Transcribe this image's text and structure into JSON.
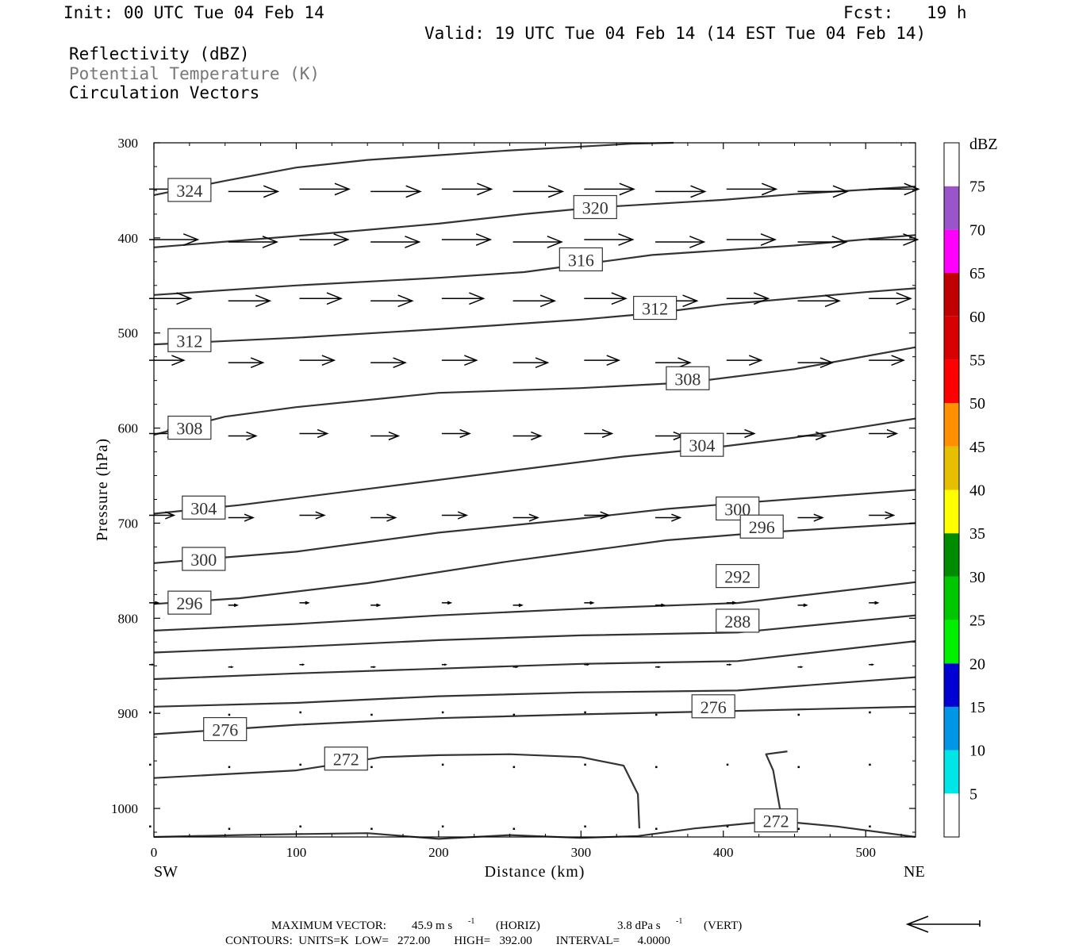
{
  "header": {
    "init": "Init: 00 UTC Tue 04 Feb 14",
    "fcst_label": "Fcst:",
    "fcst_value": "19 h",
    "valid": "Valid: 19 UTC Tue 04 Feb 14 (14 EST Tue 04 Feb 14)"
  },
  "fields": [
    {
      "label": "Reflectivity (dBZ)",
      "color": "#000000"
    },
    {
      "label": "Potential Temperature (K)",
      "color": "#777777"
    },
    {
      "label": "Circulation Vectors",
      "color": "#000000"
    }
  ],
  "footer": {
    "max_vector_label": "MAXIMUM VECTOR:",
    "max_vector_horiz": "45.9 m s",
    "max_vector_horiz_unit": "(HORIZ)",
    "max_vector_vert": "3.8 dPa s",
    "max_vector_vert_unit": "(VERT)",
    "superscript": "-1",
    "contours": "CONTOURS:  UNITS=K  LOW=   272.00        HIGH=   392.00        INTERVAL=      4.0000"
  },
  "chart_data": {
    "type": "contour-cross-section",
    "xlabel": "Distance (km)",
    "ylabel": "Pressure (hPa)",
    "xlim": [
      0,
      535
    ],
    "ylim": [
      300,
      1030
    ],
    "y_inverted": true,
    "x_ticks": [
      0,
      100,
      200,
      300,
      400,
      500
    ],
    "y_ticks": [
      300,
      400,
      500,
      600,
      700,
      800,
      900,
      1000
    ],
    "x_endpoints": {
      "left": "SW",
      "right": "NE"
    },
    "colorbar": {
      "title": "dBZ",
      "ticks": [
        "5",
        "10",
        "15",
        "20",
        "25",
        "30",
        "35",
        "40",
        "45",
        "50",
        "55",
        "60",
        "65",
        "70",
        "75"
      ],
      "colors": [
        "#ffffff",
        "#00e6e6",
        "#0096e6",
        "#0000d2",
        "#00f000",
        "#00c800",
        "#008c00",
        "#ffff00",
        "#e6c000",
        "#ff9000",
        "#ff0000",
        "#d60000",
        "#c00000",
        "#ff00ff",
        "#9955c9",
        "#ffffff"
      ]
    },
    "isentropes": [
      {
        "theta": 324,
        "label": "324",
        "label_at": [
          25,
          350
        ],
        "points": [
          [
            0,
            355
          ],
          [
            50,
            340
          ],
          [
            100,
            326
          ],
          [
            150,
            318
          ],
          [
            200,
            313
          ],
          [
            250,
            308
          ],
          [
            300,
            304
          ],
          [
            335,
            301
          ],
          [
            365,
            300
          ]
        ]
      },
      {
        "theta": 320,
        "label": "320",
        "label_at": [
          310,
          368
        ],
        "points": [
          [
            0,
            410
          ],
          [
            100,
            398
          ],
          [
            200,
            385
          ],
          [
            260,
            375
          ],
          [
            310,
            368
          ],
          [
            400,
            360
          ],
          [
            450,
            354
          ],
          [
            535,
            346
          ]
        ]
      },
      {
        "theta": 316,
        "label": "316",
        "label_at": [
          300,
          423
        ],
        "points": [
          [
            0,
            460
          ],
          [
            100,
            450
          ],
          [
            200,
            442
          ],
          [
            260,
            436
          ],
          [
            300,
            428
          ],
          [
            350,
            418
          ],
          [
            450,
            408
          ],
          [
            535,
            397
          ]
        ]
      },
      {
        "theta": 312,
        "label": "312",
        "label_at": [
          352,
          474
        ],
        "points": [
          [
            0,
            512
          ],
          [
            100,
            505
          ],
          [
            200,
            496
          ],
          [
            300,
            486
          ],
          [
            352,
            479
          ],
          [
            400,
            470
          ],
          [
            500,
            457
          ],
          [
            535,
            453
          ]
        ]
      },
      {
        "theta": 312,
        "label": "312",
        "label_at": [
          25,
          508
        ],
        "points": []
      },
      {
        "theta": 308,
        "label": "308",
        "label_at": [
          375,
          548
        ],
        "points": [
          [
            0,
            607
          ],
          [
            50,
            588
          ],
          [
            100,
            578
          ],
          [
            200,
            563
          ],
          [
            300,
            558
          ],
          [
            375,
            552
          ],
          [
            450,
            538
          ],
          [
            535,
            515
          ]
        ]
      },
      {
        "theta": 308,
        "label": "308",
        "label_at": [
          25,
          600
        ],
        "points": []
      },
      {
        "theta": 304,
        "label": "304",
        "label_at": [
          385,
          618
        ],
        "points": [
          [
            0,
            690
          ],
          [
            60,
            681
          ],
          [
            150,
            664
          ],
          [
            250,
            645
          ],
          [
            330,
            630
          ],
          [
            385,
            622
          ],
          [
            450,
            610
          ],
          [
            535,
            590
          ]
        ]
      },
      {
        "theta": 304,
        "label": "304",
        "label_at": [
          35,
          684
        ],
        "points": []
      },
      {
        "theta": 300,
        "label": "300",
        "label_at": [
          410,
          685
        ],
        "points": [
          [
            0,
            742
          ],
          [
            100,
            730
          ],
          [
            200,
            710
          ],
          [
            300,
            695
          ],
          [
            360,
            685
          ],
          [
            410,
            679
          ],
          [
            535,
            665
          ]
        ]
      },
      {
        "theta": 300,
        "label": "300",
        "label_at": [
          35,
          738
        ],
        "points": []
      },
      {
        "theta": 296,
        "label": "296",
        "label_at": [
          427,
          704
        ],
        "points": [
          [
            0,
            785
          ],
          [
            60,
            779
          ],
          [
            150,
            763
          ],
          [
            250,
            740
          ],
          [
            300,
            730
          ],
          [
            360,
            718
          ],
          [
            427,
            710
          ],
          [
            535,
            700
          ]
        ]
      },
      {
        "theta": 296,
        "label": "296",
        "label_at": [
          25,
          784
        ],
        "points": []
      },
      {
        "theta": 292,
        "label": "292",
        "label_at": [
          410,
          756
        ],
        "points": [
          [
            0,
            813
          ],
          [
            100,
            806
          ],
          [
            200,
            797
          ],
          [
            300,
            790
          ],
          [
            410,
            784
          ],
          [
            535,
            762
          ]
        ]
      },
      {
        "theta": 288,
        "label": "288",
        "label_at": [
          410,
          803
        ],
        "points": [
          [
            0,
            836
          ],
          [
            100,
            830
          ],
          [
            200,
            823
          ],
          [
            300,
            818
          ],
          [
            410,
            815
          ],
          [
            535,
            797
          ]
        ]
      },
      {
        "theta": 284,
        "label": "",
        "label_at": null,
        "points": [
          [
            0,
            864
          ],
          [
            100,
            858
          ],
          [
            200,
            853
          ],
          [
            300,
            848
          ],
          [
            410,
            845
          ],
          [
            535,
            824
          ]
        ]
      },
      {
        "theta": 280,
        "label": "",
        "label_at": null,
        "points": [
          [
            0,
            893
          ],
          [
            100,
            889
          ],
          [
            200,
            882
          ],
          [
            300,
            878
          ],
          [
            410,
            876
          ],
          [
            535,
            862
          ]
        ]
      },
      {
        "theta": 276,
        "label": "276",
        "label_at": [
          393,
          893
        ],
        "points": [
          [
            0,
            922
          ],
          [
            50,
            917
          ],
          [
            100,
            912
          ],
          [
            200,
            905
          ],
          [
            300,
            901
          ],
          [
            393,
            898
          ],
          [
            450,
            896
          ],
          [
            535,
            893
          ]
        ]
      },
      {
        "theta": 276,
        "label": "276",
        "label_at": [
          50,
          917
        ],
        "points": []
      },
      {
        "theta": 272,
        "label": "272",
        "label_at": [
          135,
          948
        ],
        "points": [
          [
            0,
            968
          ],
          [
            50,
            964
          ],
          [
            100,
            960
          ],
          [
            135,
            952
          ],
          [
            160,
            946
          ],
          [
            200,
            944
          ],
          [
            250,
            943
          ],
          [
            300,
            946
          ],
          [
            330,
            955
          ],
          [
            340,
            985
          ],
          [
            341,
            1021
          ]
        ]
      },
      {
        "theta": 272,
        "label": "",
        "label_at": null,
        "points": [
          [
            445,
            940
          ],
          [
            430,
            943
          ],
          [
            435,
            960
          ],
          [
            440,
            1002
          ],
          [
            445,
            1015
          ]
        ]
      },
      {
        "theta": 272,
        "label": "272",
        "label_at": [
          437,
          1013
        ],
        "points": [
          [
            0,
            1030
          ],
          [
            60,
            1028
          ],
          [
            100,
            1027
          ],
          [
            150,
            1026
          ],
          [
            200,
            1032
          ],
          [
            250,
            1028
          ],
          [
            300,
            1031
          ],
          [
            340,
            1029
          ],
          [
            380,
            1021
          ],
          [
            437,
            1013
          ],
          [
            480,
            1019
          ],
          [
            535,
            1030
          ]
        ]
      }
    ],
    "vector_levels_hPa": [
      350,
      403,
      465,
      530,
      607,
      693,
      785,
      850,
      900,
      955,
      1020
    ],
    "vector_x_km": [
      0,
      50,
      100,
      150,
      200,
      250,
      300,
      350,
      400,
      450,
      500
    ],
    "vector_u_scale": [
      50,
      49,
      42,
      35,
      28,
      25,
      9,
      4,
      2,
      1,
      1
    ]
  }
}
